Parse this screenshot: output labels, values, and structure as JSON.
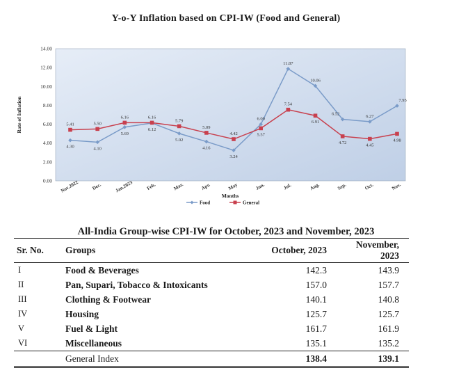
{
  "chart_title": "Y-o-Y Inflation based on CPI-IW (Food and General)",
  "chart_data": {
    "type": "line",
    "title": "Y-o-Y Inflation based on CPI-IW (Food and General)",
    "xlabel": "Months",
    "ylabel": "Rate of Inflation",
    "ylim": [
      0,
      14
    ],
    "yticks": [
      "0.00",
      "2.00",
      "4.00",
      "6.00",
      "8.00",
      "10.00",
      "12.00",
      "14.00"
    ],
    "categories": [
      "Nov.2022",
      "Dec.",
      "Jan.2023",
      "Feb.",
      "Mar.",
      "Apr.",
      "May",
      "Jun.",
      "Jul.",
      "Aug.",
      "Sep.",
      "Oct.",
      "Nov."
    ],
    "series": [
      {
        "name": "Food",
        "color": "#7a9bc8",
        "values": [
          4.3,
          4.1,
          5.69,
          6.12,
          5.02,
          4.16,
          3.24,
          6.0,
          11.87,
          10.06,
          6.52,
          6.27,
          7.95
        ],
        "labels": [
          "4.30",
          "4.10",
          "5.69",
          "6.12",
          "5.02",
          "4.16",
          "3.24",
          "6.00",
          "11.87",
          "10.06",
          "6.52",
          "6.27",
          "7.95"
        ]
      },
      {
        "name": "General",
        "color": "#c8404e",
        "values": [
          5.41,
          5.5,
          6.16,
          6.16,
          5.79,
          5.09,
          4.42,
          5.57,
          7.54,
          6.91,
          4.72,
          4.45,
          4.98
        ],
        "labels": [
          "5.41",
          "5.50",
          "6.16",
          "6.16",
          "5.79",
          "5.09",
          "4.42",
          "5.57",
          "7.54",
          "6.91",
          "4.72",
          "4.45",
          "4.98"
        ]
      }
    ],
    "legend": "bottom",
    "grid": false
  },
  "table": {
    "title": "All-India Group-wise CPI-IW for October, 2023 and November, 2023",
    "headers": {
      "sr": "Sr. No.",
      "group": "Groups",
      "oct": "October, 2023",
      "nov": "November, 2023"
    },
    "rows": [
      {
        "sr": "I",
        "group": "Food & Beverages",
        "oct": "142.3",
        "nov": "143.9"
      },
      {
        "sr": "II",
        "group": "Pan, Supari, Tobacco & Intoxicants",
        "oct": "157.0",
        "nov": "157.7"
      },
      {
        "sr": "III",
        "group": "Clothing & Footwear",
        "oct": "140.1",
        "nov": "140.8"
      },
      {
        "sr": "IV",
        "group": "Housing",
        "oct": "125.7",
        "nov": "125.7"
      },
      {
        "sr": "V",
        "group": "Fuel & Light",
        "oct": "161.7",
        "nov": "161.9"
      },
      {
        "sr": "VI",
        "group": "Miscellaneous",
        "oct": "135.1",
        "nov": "135.2"
      }
    ],
    "total": {
      "group": "General Index",
      "oct": "138.4",
      "nov": "139.1"
    }
  }
}
